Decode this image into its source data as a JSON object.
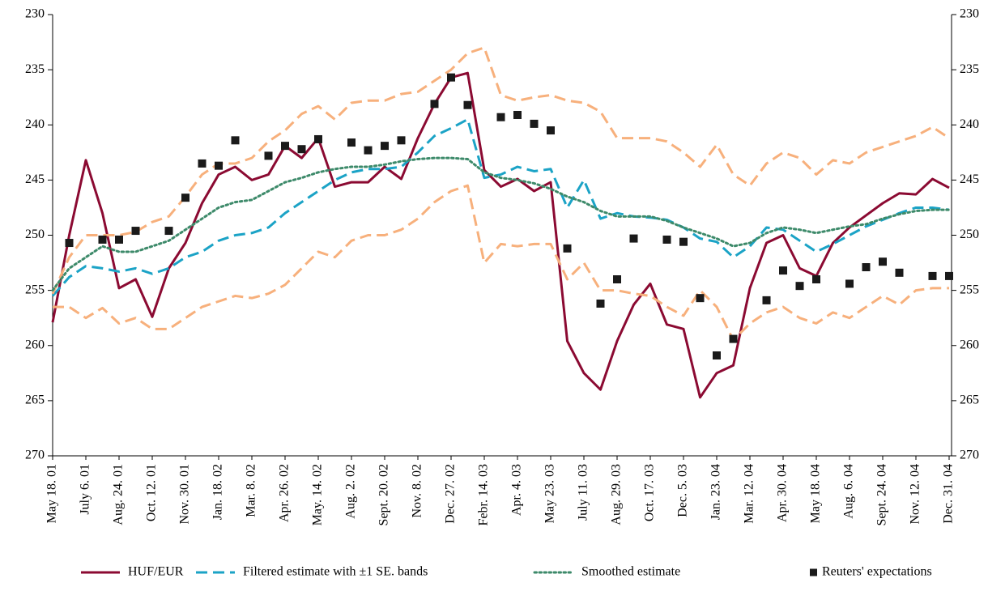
{
  "chart_data": {
    "type": "line",
    "categories": [
      "May 18. 01",
      null,
      "July 6. 01",
      null,
      "Aug. 24. 01",
      null,
      "Oct. 12. 01",
      null,
      "Nov. 30. 01",
      null,
      "Jan. 18. 02",
      null,
      "Mar. 8. 02",
      null,
      "Apr. 26. 02",
      null,
      "May. 14. 02",
      null,
      "Aug. 2. 02",
      null,
      "Sept. 20. 02",
      null,
      "Nov. 8. 02",
      null,
      "Dec. 27. 02",
      null,
      "Febr. 14. 03",
      null,
      "Apr. 4. 03",
      null,
      "May 23. 03",
      null,
      "July 11. 03",
      null,
      "Aug. 29. 03",
      null,
      "Oct. 17. 03",
      null,
      "Dec. 5. 03",
      null,
      "Jan. 23. 04",
      null,
      "Mar. 12. 04",
      null,
      "Apr. 30. 04",
      null,
      "May 18. 04",
      null,
      "Aug. 6. 04",
      null,
      "Sept. 24. 04",
      null,
      "Nov. 12. 04",
      null,
      "Dec. 31. 04"
    ],
    "series": [
      {
        "name": "HUF/EUR",
        "color": "#8b0a32",
        "style": "solid",
        "values": [
          257.9,
          250,
          243.2,
          248,
          254.8,
          254,
          257.4,
          253,
          250.7,
          247.1,
          244.5,
          243.8,
          245,
          244.5,
          241.9,
          243,
          241.2,
          245.6,
          245.2,
          245.2,
          243.8,
          244.9,
          241.2,
          238.1,
          235.7,
          235.3,
          244.1,
          245.6,
          244.9,
          246,
          245.2,
          259.6,
          262.5,
          264,
          259.6,
          256.3,
          254.4,
          258.1,
          258.5,
          264.7,
          262.5,
          261.8,
          254.8,
          250.7,
          250,
          253,
          253.7,
          250.7,
          249.3,
          248.2,
          247.1,
          246.2,
          246.3,
          244.9,
          245.7
        ]
      },
      {
        "name": "Filtered estimate with ±1 SE. bands",
        "color": "#1ba3c6",
        "style": "dashed",
        "values": [
          255.5,
          253.8,
          252.8,
          253,
          253.3,
          253,
          253.5,
          253,
          252,
          251.5,
          250.5,
          250,
          249.8,
          249.3,
          248,
          247,
          246,
          245,
          244.3,
          244,
          244,
          243.8,
          242.5,
          241,
          240.3,
          239.5,
          244.8,
          244.5,
          243.8,
          244.2,
          244,
          247.5,
          245,
          248.5,
          248,
          248.3,
          248.4,
          248.6,
          249.3,
          250.3,
          250.6,
          252,
          251,
          249.3,
          249.5,
          250.5,
          251.5,
          250.8,
          250,
          249.2,
          248.6,
          248,
          247.5,
          247.5,
          247.7
        ]
      },
      {
        "color": "#f7b07c",
        "style": "dashed",
        "values": [
          255.3,
          252,
          250,
          250,
          250,
          249.7,
          248.8,
          248.3,
          246.5,
          244.5,
          243.5,
          243.5,
          243,
          241.5,
          240.5,
          239,
          238.3,
          239.5,
          238,
          237.8,
          237.8,
          237.2,
          237,
          236,
          235,
          233.5,
          233,
          237.3,
          237.8,
          237.5,
          237.3,
          237.8,
          238,
          238.8,
          241.2,
          241.2,
          241.2,
          241.5,
          242.5,
          243.8,
          241.8,
          244.5,
          245.5,
          243.5,
          242.5,
          243,
          244.5,
          243.2,
          243.5,
          242.5,
          242,
          241.5,
          241,
          240.2,
          241.2
        ]
      },
      {
        "color": "#f7b07c",
        "style": "dashed",
        "values": [
          256.5,
          256.5,
          257.5,
          256.6,
          258,
          257.5,
          258.5,
          258.5,
          257.5,
          256.5,
          256,
          255.5,
          255.7,
          255.3,
          254.5,
          253,
          251.5,
          252,
          250.5,
          250,
          250,
          249.5,
          248.5,
          247,
          246,
          245.5,
          252.5,
          250.8,
          251,
          250.8,
          250.8,
          254,
          252.5,
          255,
          255,
          255.3,
          255.5,
          256.5,
          257.3,
          255,
          256.5,
          259.5,
          258,
          257,
          256.5,
          257.5,
          258,
          257,
          257.5,
          256.5,
          255.5,
          256.3,
          255,
          254.8,
          254.8
        ]
      },
      {
        "name": "Smoothed estimate",
        "color": "#3d8a6a",
        "style": "dotted",
        "values": [
          255,
          253,
          252,
          251,
          251.5,
          251.5,
          251,
          250.5,
          249.5,
          248.5,
          247.5,
          247,
          246.8,
          246,
          245.2,
          244.8,
          244.3,
          244,
          243.8,
          243.8,
          243.6,
          243.3,
          243.1,
          243,
          243,
          243.1,
          244.3,
          244.8,
          245,
          245.3,
          245.8,
          246.5,
          247,
          247.8,
          248.3,
          248.3,
          248.3,
          248.7,
          249.3,
          249.8,
          250.3,
          251,
          250.7,
          249.8,
          249.3,
          249.5,
          249.8,
          249.5,
          249.2,
          249,
          248.5,
          248.1,
          247.8,
          247.7,
          247.7
        ]
      },
      {
        "name": "Reuters' expectations",
        "color": "#1a1a1a",
        "style": "markers",
        "values": [
          null,
          250.7,
          null,
          250.4,
          250.4,
          249.6,
          null,
          249.6,
          246.6,
          243.5,
          243.7,
          241.4,
          null,
          242.8,
          241.9,
          242.2,
          241.3,
          null,
          241.6,
          242.3,
          241.9,
          241.4,
          null,
          238.1,
          235.7,
          238.2,
          null,
          239.3,
          239.1,
          239.9,
          240.5,
          251.2,
          null,
          256.2,
          254,
          250.3,
          null,
          250.4,
          250.6,
          255.7,
          260.9,
          259.4,
          null,
          255.9,
          253.2,
          254.6,
          254,
          null,
          254.4,
          252.9,
          252.4,
          253.4,
          null,
          253.7,
          253.7
        ]
      }
    ],
    "ylim": [
      230,
      270
    ],
    "y_inverted": true,
    "yticks": [
      230,
      235,
      240,
      245,
      250,
      255,
      260,
      265,
      270
    ],
    "y2lim": [
      230,
      270
    ],
    "y2ticks": [
      230,
      235,
      240,
      245,
      250,
      255,
      260,
      265,
      270
    ],
    "grid": false,
    "legend": "bottom"
  }
}
